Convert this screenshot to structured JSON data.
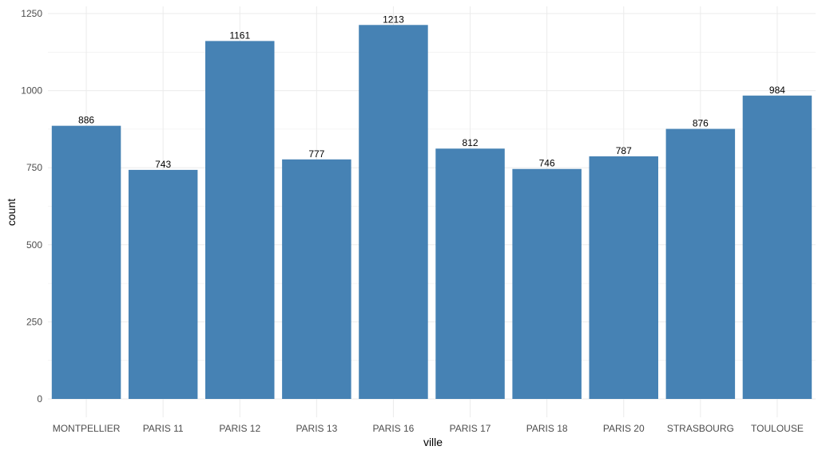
{
  "chart_data": {
    "type": "bar",
    "title": "",
    "xlabel": "ville",
    "ylabel": "count",
    "categories": [
      "MONTPELLIER",
      "PARIS 11",
      "PARIS 12",
      "PARIS 13",
      "PARIS 16",
      "PARIS 17",
      "PARIS 18",
      "PARIS 20",
      "STRASBOURG",
      "TOULOUSE"
    ],
    "values": [
      886,
      743,
      1161,
      777,
      1213,
      812,
      746,
      787,
      876,
      984
    ],
    "ylim": [
      0,
      1250
    ],
    "yticks": [
      0,
      250,
      500,
      750,
      1000,
      1250
    ],
    "grid": true,
    "legend": "none",
    "bar_color": "#4682B4",
    "grid_color": "#EBEBEB"
  }
}
